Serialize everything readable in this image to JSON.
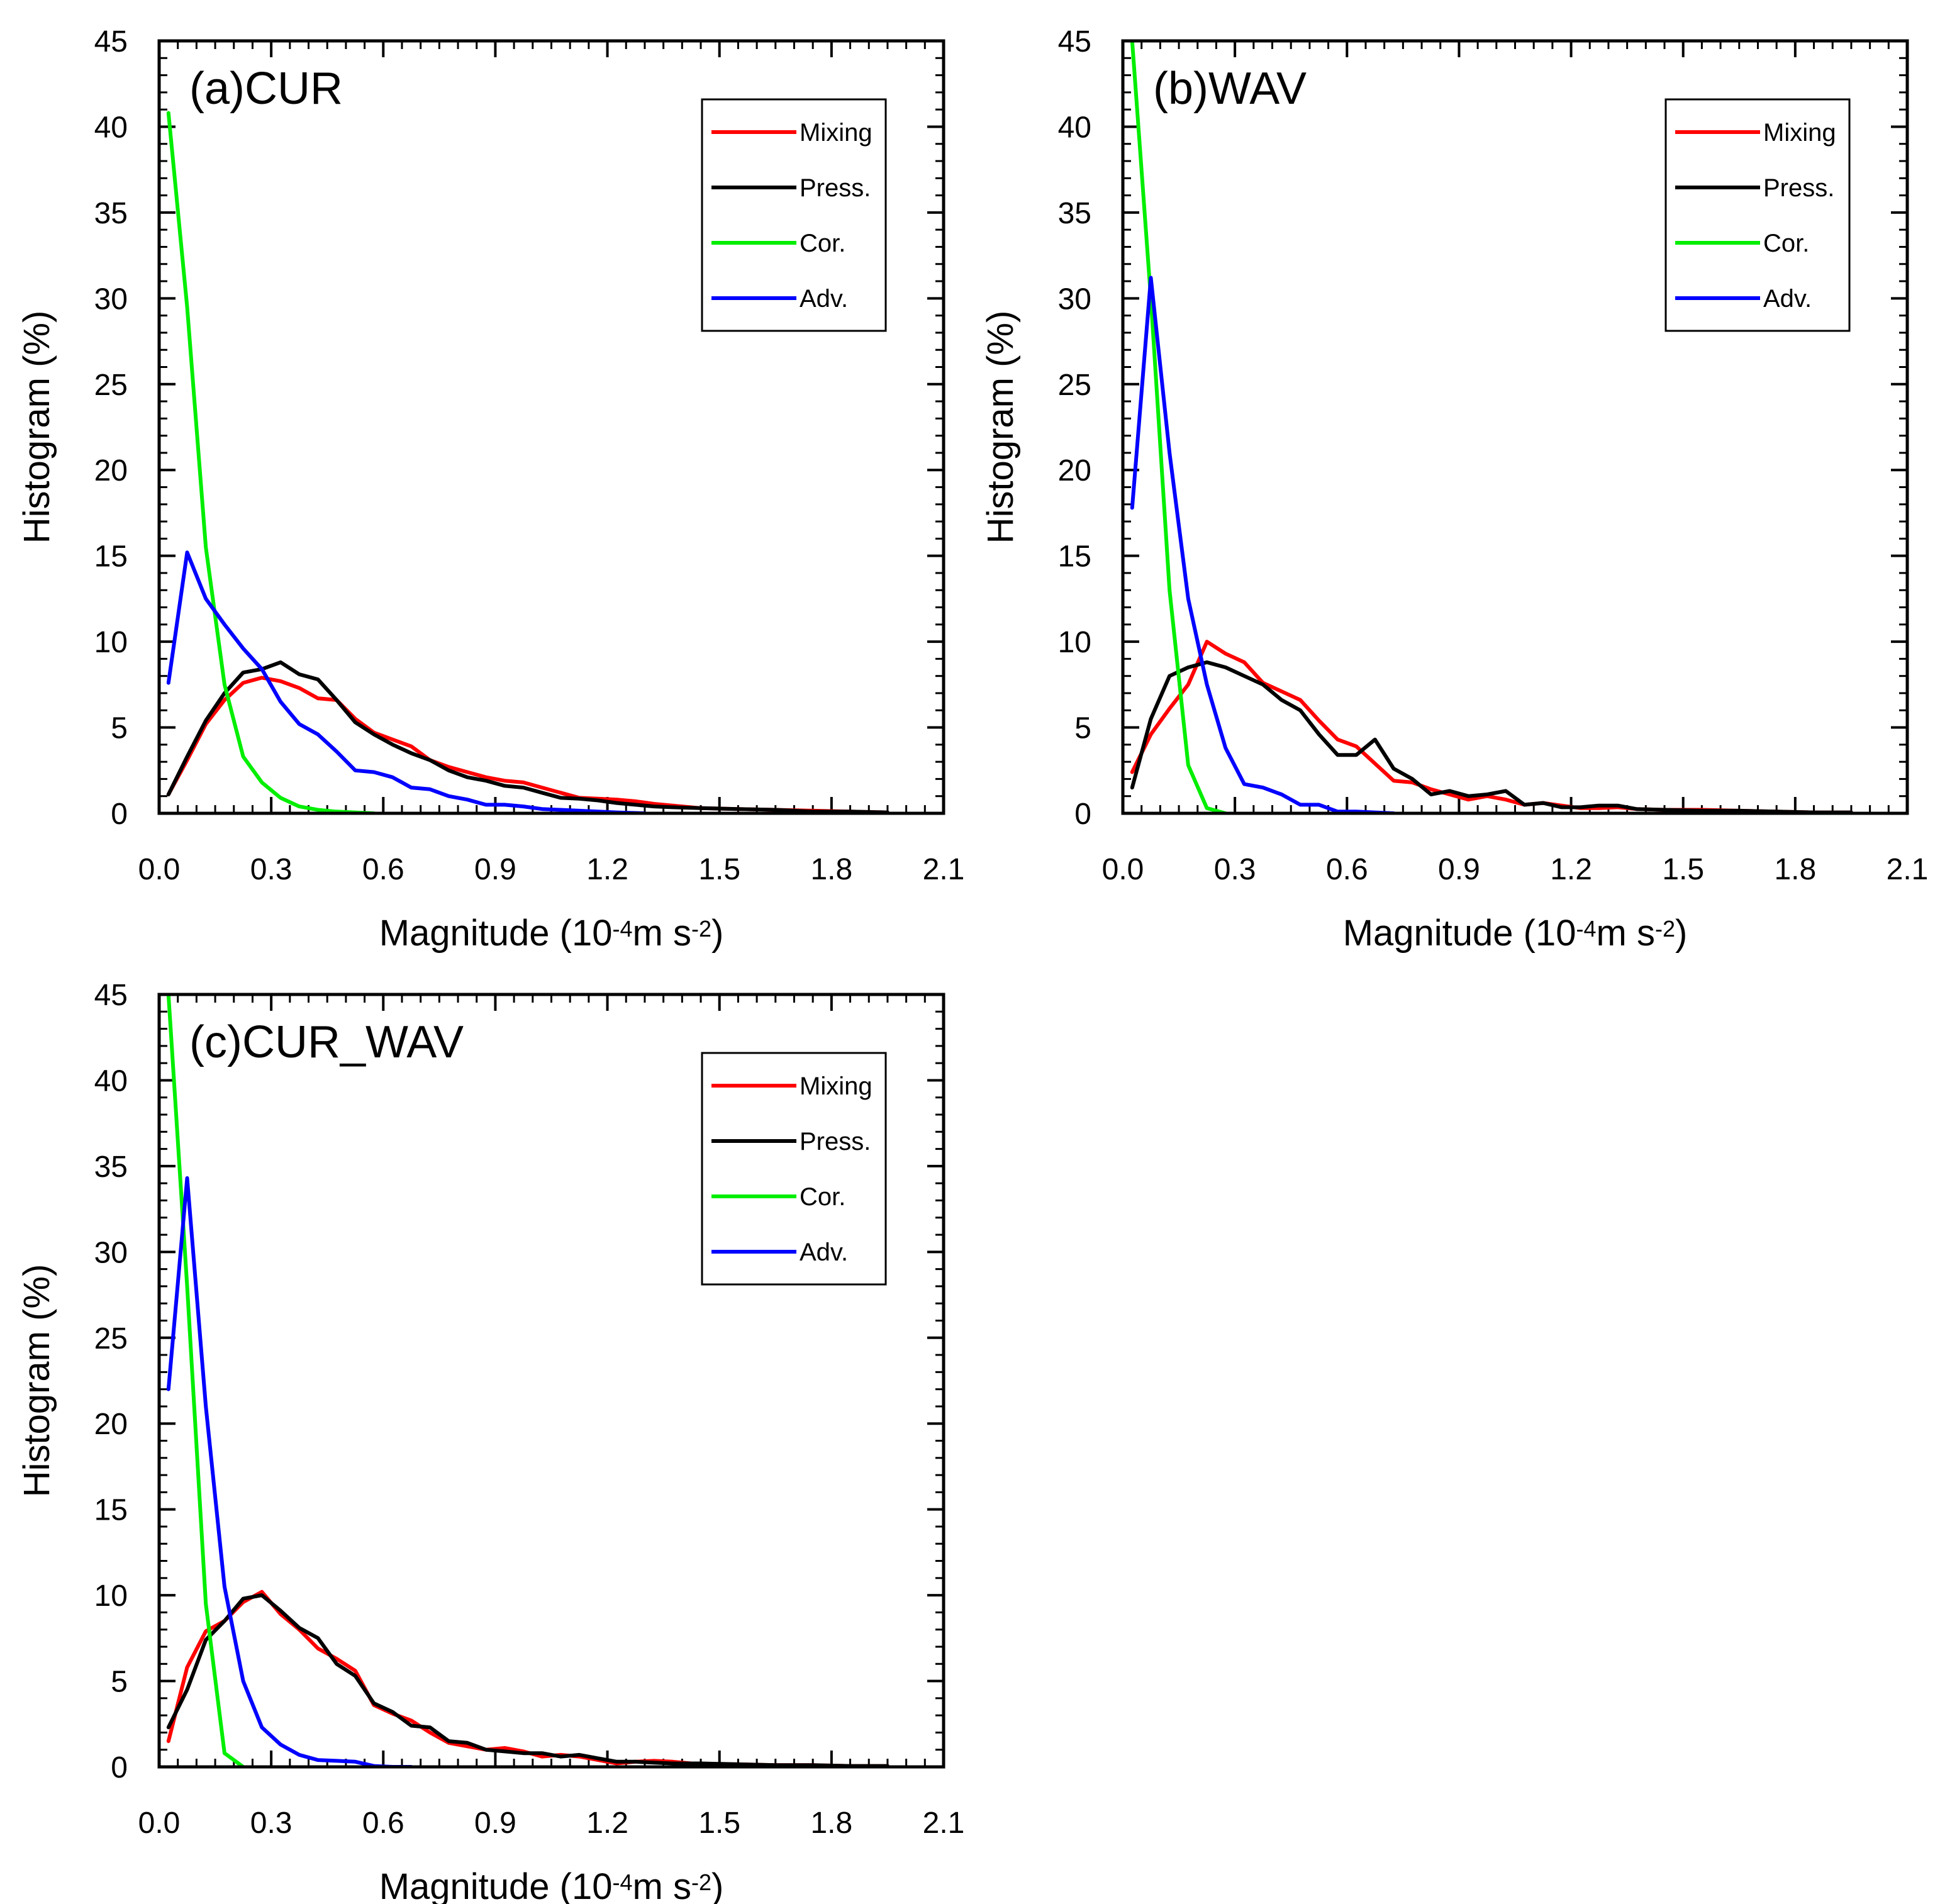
{
  "chart_data": [
    {
      "id": "a",
      "type": "line",
      "title": "(a)CUR",
      "ylabel": "Histogram (%)",
      "xlabel": {
        "prefix": "Magnitude (10",
        "exp1": "-4",
        "mid": "m s",
        "exp2": "-2",
        "suffix": ")"
      },
      "xlim": [
        0,
        2.1
      ],
      "ylim": [
        0,
        45
      ],
      "xticks": [
        "0.0",
        "0.3",
        "0.6",
        "0.9",
        "1.2",
        "1.5",
        "1.8",
        "2.1"
      ],
      "yticks": [
        "0",
        "5",
        "10",
        "15",
        "20",
        "25",
        "30",
        "35",
        "40",
        "45"
      ],
      "grid": false,
      "legend_position": "top-right",
      "series": [
        {
          "name": "Mixing",
          "color": "#ff0000",
          "x": [
            0.025,
            0.075,
            0.125,
            0.175,
            0.225,
            0.275,
            0.325,
            0.375,
            0.425,
            0.475,
            0.525,
            0.575,
            0.625,
            0.675,
            0.725,
            0.775,
            0.825,
            0.875,
            0.925,
            0.975,
            1.025,
            1.075,
            1.125,
            1.175,
            1.225,
            1.275,
            1.325,
            1.375,
            1.45,
            1.55,
            1.65,
            1.75,
            1.85,
            1.95
          ],
          "y": [
            1.1,
            3.1,
            5.2,
            6.6,
            7.6,
            7.9,
            7.7,
            7.3,
            6.7,
            6.6,
            5.5,
            4.7,
            4.3,
            3.9,
            3.1,
            2.7,
            2.4,
            2.1,
            1.9,
            1.8,
            1.5,
            1.2,
            0.9,
            0.85,
            0.8,
            0.7,
            0.55,
            0.45,
            0.3,
            0.25,
            0.2,
            0.15,
            0.1,
            0.05
          ]
        },
        {
          "name": "Press.",
          "color": "#000000",
          "x": [
            0.025,
            0.075,
            0.125,
            0.175,
            0.225,
            0.275,
            0.325,
            0.375,
            0.425,
            0.475,
            0.525,
            0.575,
            0.625,
            0.675,
            0.725,
            0.775,
            0.825,
            0.875,
            0.925,
            0.975,
            1.025,
            1.075,
            1.125,
            1.175,
            1.225,
            1.275,
            1.325,
            1.375,
            1.45,
            1.55,
            1.65,
            1.75,
            1.85,
            1.95
          ],
          "y": [
            1.1,
            3.3,
            5.4,
            7.0,
            8.2,
            8.4,
            8.8,
            8.1,
            7.8,
            6.6,
            5.3,
            4.6,
            4.0,
            3.5,
            3.1,
            2.5,
            2.1,
            1.9,
            1.6,
            1.5,
            1.2,
            0.9,
            0.85,
            0.75,
            0.6,
            0.5,
            0.4,
            0.35,
            0.3,
            0.25,
            0.2,
            0.1,
            0.1,
            0.05
          ]
        },
        {
          "name": "Cor.",
          "color": "#00ee00",
          "x": [
            0.025,
            0.075,
            0.125,
            0.175,
            0.225,
            0.275,
            0.325,
            0.375,
            0.425,
            0.475,
            0.525,
            0.575
          ],
          "y": [
            40.8,
            29.5,
            15.5,
            7.5,
            3.3,
            1.8,
            0.9,
            0.4,
            0.2,
            0.1,
            0.05,
            0.0
          ]
        },
        {
          "name": "Adv.",
          "color": "#0000ff",
          "x": [
            0.025,
            0.075,
            0.125,
            0.175,
            0.225,
            0.275,
            0.325,
            0.375,
            0.425,
            0.475,
            0.525,
            0.575,
            0.625,
            0.675,
            0.725,
            0.775,
            0.825,
            0.875,
            0.925,
            0.975,
            1.025,
            1.075,
            1.125,
            1.175,
            1.225,
            1.3
          ],
          "y": [
            7.6,
            15.2,
            12.5,
            11.0,
            9.6,
            8.4,
            6.5,
            5.2,
            4.6,
            3.6,
            2.5,
            2.4,
            2.1,
            1.5,
            1.4,
            1.0,
            0.8,
            0.5,
            0.5,
            0.4,
            0.25,
            0.2,
            0.15,
            0.1,
            0.05,
            0.0
          ]
        }
      ]
    },
    {
      "id": "b",
      "type": "line",
      "title": "(b)WAV",
      "ylabel": "Histogram (%)",
      "xlabel": {
        "prefix": "Magnitude (10",
        "exp1": "-4",
        "mid": "m s",
        "exp2": "-2",
        "suffix": ")"
      },
      "xlim": [
        0,
        2.1
      ],
      "ylim": [
        0,
        45
      ],
      "xticks": [
        "0.0",
        "0.3",
        "0.6",
        "0.9",
        "1.2",
        "1.5",
        "1.8",
        "2.1"
      ],
      "yticks": [
        "0",
        "5",
        "10",
        "15",
        "20",
        "25",
        "30",
        "35",
        "40",
        "45"
      ],
      "grid": false,
      "legend_position": "top-right",
      "series": [
        {
          "name": "Mixing",
          "color": "#ff0000",
          "x": [
            0.025,
            0.075,
            0.125,
            0.175,
            0.225,
            0.275,
            0.325,
            0.375,
            0.425,
            0.475,
            0.525,
            0.575,
            0.625,
            0.675,
            0.725,
            0.775,
            0.825,
            0.875,
            0.925,
            0.975,
            1.025,
            1.075,
            1.125,
            1.175,
            1.225,
            1.275,
            1.325,
            1.375,
            1.45,
            1.55,
            1.65,
            1.75,
            1.85,
            1.95
          ],
          "y": [
            2.4,
            4.6,
            6.1,
            7.5,
            10.0,
            9.3,
            8.8,
            7.6,
            7.1,
            6.6,
            5.4,
            4.3,
            3.9,
            2.9,
            1.9,
            1.8,
            1.4,
            1.1,
            0.8,
            1.0,
            0.8,
            0.5,
            0.6,
            0.45,
            0.3,
            0.3,
            0.35,
            0.25,
            0.2,
            0.2,
            0.15,
            0.1,
            0.05,
            0.05
          ]
        },
        {
          "name": "Press.",
          "color": "#000000",
          "x": [
            0.025,
            0.075,
            0.125,
            0.175,
            0.225,
            0.275,
            0.325,
            0.375,
            0.425,
            0.475,
            0.525,
            0.575,
            0.625,
            0.675,
            0.725,
            0.775,
            0.825,
            0.875,
            0.925,
            0.975,
            1.025,
            1.075,
            1.125,
            1.175,
            1.225,
            1.275,
            1.325,
            1.375,
            1.45,
            1.55,
            1.65,
            1.75,
            1.85,
            1.95
          ],
          "y": [
            1.5,
            5.5,
            8.0,
            8.5,
            8.8,
            8.5,
            8.0,
            7.5,
            6.6,
            6.0,
            4.6,
            3.4,
            3.4,
            4.3,
            2.6,
            2.0,
            1.1,
            1.3,
            1.0,
            1.1,
            1.3,
            0.5,
            0.6,
            0.35,
            0.35,
            0.45,
            0.45,
            0.25,
            0.2,
            0.15,
            0.15,
            0.1,
            0.05,
            0.05
          ]
        },
        {
          "name": "Cor.",
          "color": "#00ee00",
          "x": [
            0.025,
            0.075,
            0.125,
            0.175,
            0.225,
            0.275
          ],
          "y": [
            45.0,
            30.0,
            13.0,
            2.8,
            0.3,
            0.0
          ]
        },
        {
          "name": "Adv.",
          "color": "#0000ff",
          "x": [
            0.025,
            0.075,
            0.125,
            0.175,
            0.225,
            0.275,
            0.325,
            0.375,
            0.425,
            0.475,
            0.525,
            0.575,
            0.625,
            0.675,
            0.725
          ],
          "y": [
            17.8,
            31.2,
            21.0,
            12.5,
            7.5,
            3.8,
            1.7,
            1.5,
            1.1,
            0.5,
            0.5,
            0.1,
            0.1,
            0.05,
            0.0
          ]
        }
      ]
    },
    {
      "id": "c",
      "type": "line",
      "title": "(c)CUR_WAV",
      "ylabel": "Histogram (%)",
      "xlabel": {
        "prefix": "Magnitude (10",
        "exp1": "-4",
        "mid": "m s",
        "exp2": "-2",
        "suffix": ")"
      },
      "xlim": [
        0,
        2.1
      ],
      "ylim": [
        0,
        45
      ],
      "xticks": [
        "0.0",
        "0.3",
        "0.6",
        "0.9",
        "1.2",
        "1.5",
        "1.8",
        "2.1"
      ],
      "yticks": [
        "0",
        "5",
        "10",
        "15",
        "20",
        "25",
        "30",
        "35",
        "40",
        "45"
      ],
      "grid": false,
      "legend_position": "top-right",
      "series": [
        {
          "name": "Mixing",
          "color": "#ff0000",
          "x": [
            0.025,
            0.075,
            0.125,
            0.175,
            0.225,
            0.275,
            0.325,
            0.375,
            0.425,
            0.475,
            0.525,
            0.575,
            0.625,
            0.675,
            0.725,
            0.775,
            0.825,
            0.875,
            0.925,
            0.975,
            1.025,
            1.075,
            1.125,
            1.175,
            1.225,
            1.275,
            1.325,
            1.375,
            1.45,
            1.55,
            1.65,
            1.75,
            1.85,
            1.95
          ],
          "y": [
            1.5,
            5.8,
            7.9,
            8.5,
            9.6,
            10.2,
            8.9,
            8.0,
            6.9,
            6.3,
            5.6,
            3.6,
            3.1,
            2.7,
            2.0,
            1.4,
            1.2,
            1.0,
            1.1,
            0.9,
            0.6,
            0.7,
            0.6,
            0.4,
            0.2,
            0.3,
            0.35,
            0.3,
            0.15,
            0.15,
            0.1,
            0.1,
            0.05,
            0.05
          ]
        },
        {
          "name": "Press.",
          "color": "#000000",
          "x": [
            0.025,
            0.075,
            0.125,
            0.175,
            0.225,
            0.275,
            0.325,
            0.375,
            0.425,
            0.475,
            0.525,
            0.575,
            0.625,
            0.675,
            0.725,
            0.775,
            0.825,
            0.875,
            0.925,
            0.975,
            1.025,
            1.075,
            1.125,
            1.175,
            1.225,
            1.275,
            1.325,
            1.375,
            1.45,
            1.55,
            1.65,
            1.75,
            1.85,
            1.95
          ],
          "y": [
            2.3,
            4.5,
            7.4,
            8.5,
            9.8,
            10.0,
            9.1,
            8.1,
            7.5,
            6.0,
            5.3,
            3.7,
            3.2,
            2.4,
            2.3,
            1.5,
            1.4,
            1.0,
            0.9,
            0.8,
            0.8,
            0.6,
            0.7,
            0.5,
            0.3,
            0.3,
            0.25,
            0.2,
            0.2,
            0.15,
            0.1,
            0.1,
            0.05,
            0.05
          ]
        },
        {
          "name": "Cor.",
          "color": "#00ee00",
          "x": [
            0.025,
            0.075,
            0.125,
            0.175,
            0.225
          ],
          "y": [
            45.0,
            28.0,
            9.5,
            0.8,
            0.0
          ]
        },
        {
          "name": "Adv.",
          "color": "#0000ff",
          "x": [
            0.025,
            0.075,
            0.125,
            0.175,
            0.225,
            0.275,
            0.325,
            0.375,
            0.425,
            0.475,
            0.525,
            0.575,
            0.625,
            0.675
          ],
          "y": [
            22.0,
            34.3,
            21.0,
            10.5,
            5.0,
            2.3,
            1.3,
            0.7,
            0.4,
            0.35,
            0.3,
            0.05,
            0.0,
            0.0
          ]
        }
      ]
    }
  ]
}
